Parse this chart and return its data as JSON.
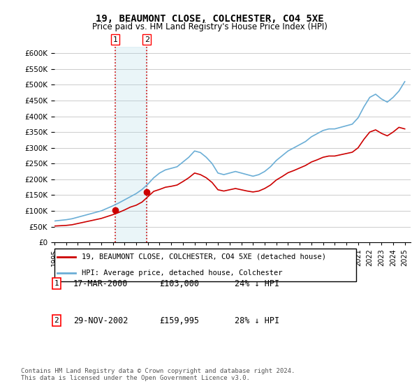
{
  "title": "19, BEAUMONT CLOSE, COLCHESTER, CO4 5XE",
  "subtitle": "Price paid vs. HM Land Registry's House Price Index (HPI)",
  "ylabel": "",
  "ylim": [
    0,
    620000
  ],
  "yticks": [
    0,
    50000,
    100000,
    150000,
    200000,
    250000,
    300000,
    350000,
    400000,
    450000,
    500000,
    550000,
    600000
  ],
  "hpi_color": "#6baed6",
  "price_color": "#cc0000",
  "vline_color": "#cc0000",
  "vline_style": "dotted",
  "bg_color": "#ffffff",
  "grid_color": "#cccccc",
  "sale1_year": 2000.21,
  "sale1_price": 103000,
  "sale1_label": "1",
  "sale1_date": "17-MAR-2000",
  "sale1_hpi_pct": "24% ↓ HPI",
  "sale2_year": 2002.91,
  "sale2_price": 159995,
  "sale2_label": "2",
  "sale2_date": "29-NOV-2002",
  "sale2_hpi_pct": "28% ↓ HPI",
  "legend_entry1": "19, BEAUMONT CLOSE, COLCHESTER, CO4 5XE (detached house)",
  "legend_entry2": "HPI: Average price, detached house, Colchester",
  "footnote": "Contains HM Land Registry data © Crown copyright and database right 2024.\nThis data is licensed under the Open Government Licence v3.0.",
  "hpi_x": [
    1995,
    1995.5,
    1996,
    1996.5,
    1997,
    1997.5,
    1998,
    1998.5,
    1999,
    1999.5,
    2000,
    2000.5,
    2001,
    2001.5,
    2002,
    2002.5,
    2003,
    2003.5,
    2004,
    2004.5,
    2005,
    2005.5,
    2006,
    2006.5,
    2007,
    2007.5,
    2008,
    2008.5,
    2009,
    2009.5,
    2010,
    2010.5,
    2011,
    2011.5,
    2012,
    2012.5,
    2013,
    2013.5,
    2014,
    2014.5,
    2015,
    2015.5,
    2016,
    2016.5,
    2017,
    2017.5,
    2018,
    2018.5,
    2019,
    2019.5,
    2020,
    2020.5,
    2021,
    2021.5,
    2022,
    2022.5,
    2023,
    2023.5,
    2024,
    2024.5,
    2025
  ],
  "hpi_y": [
    68000,
    70000,
    72000,
    75000,
    80000,
    85000,
    90000,
    95000,
    100000,
    108000,
    116000,
    125000,
    135000,
    145000,
    155000,
    168000,
    185000,
    205000,
    220000,
    230000,
    235000,
    240000,
    255000,
    270000,
    290000,
    285000,
    270000,
    250000,
    220000,
    215000,
    220000,
    225000,
    220000,
    215000,
    210000,
    215000,
    225000,
    240000,
    260000,
    275000,
    290000,
    300000,
    310000,
    320000,
    335000,
    345000,
    355000,
    360000,
    360000,
    365000,
    370000,
    375000,
    395000,
    430000,
    460000,
    470000,
    455000,
    445000,
    460000,
    480000,
    510000
  ],
  "price_x": [
    1995,
    1995.5,
    1996,
    1996.5,
    1997,
    1997.5,
    1998,
    1998.5,
    1999,
    1999.5,
    2000,
    2000.5,
    2001,
    2001.5,
    2002,
    2002.5,
    2003,
    2003.5,
    2004,
    2004.5,
    2005,
    2005.5,
    2006,
    2006.5,
    2007,
    2007.5,
    2008,
    2008.5,
    2009,
    2009.5,
    2010,
    2010.5,
    2011,
    2011.5,
    2012,
    2012.5,
    2013,
    2013.5,
    2014,
    2014.5,
    2015,
    2015.5,
    2016,
    2016.5,
    2017,
    2017.5,
    2018,
    2018.5,
    2019,
    2019.5,
    2020,
    2020.5,
    2021,
    2021.5,
    2022,
    2022.5,
    2023,
    2023.5,
    2024,
    2024.5,
    2025
  ],
  "price_y": [
    52000,
    53000,
    54000,
    56000,
    60000,
    64000,
    68000,
    72000,
    76000,
    82000,
    88000,
    95000,
    103000,
    112000,
    118000,
    128000,
    145000,
    162000,
    168000,
    175000,
    178000,
    182000,
    193000,
    205000,
    220000,
    215000,
    205000,
    190000,
    167000,
    163000,
    167000,
    171000,
    167000,
    163000,
    160000,
    163000,
    171000,
    182000,
    198000,
    209000,
    221000,
    228000,
    236000,
    244000,
    255000,
    262000,
    270000,
    274000,
    274000,
    278000,
    282000,
    286000,
    300000,
    327000,
    350000,
    357000,
    346000,
    338000,
    350000,
    365000,
    360000
  ],
  "xmin": 1995,
  "xmax": 2025.5,
  "xticks": [
    1995,
    1996,
    1997,
    1998,
    1999,
    2000,
    2001,
    2002,
    2003,
    2004,
    2005,
    2006,
    2007,
    2008,
    2009,
    2010,
    2011,
    2012,
    2013,
    2014,
    2015,
    2016,
    2017,
    2018,
    2019,
    2020,
    2021,
    2022,
    2023,
    2024,
    2025
  ]
}
